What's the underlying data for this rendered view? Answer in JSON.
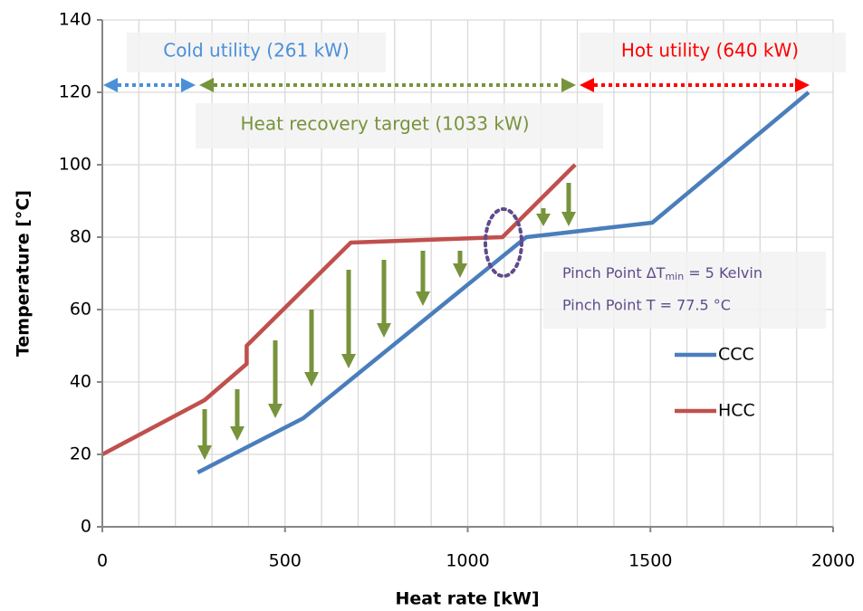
{
  "chart_data": {
    "type": "line",
    "x_label": "Heat rate [kW]",
    "y_label": "Temperature [°C]",
    "xlim": [
      0,
      2000
    ],
    "ylim": [
      0,
      140
    ],
    "xticks": [
      0,
      500,
      1000,
      1500,
      2000
    ],
    "yticks": [
      0,
      20,
      40,
      60,
      80,
      100,
      120,
      140
    ],
    "xgrid": [
      0,
      100,
      200,
      300,
      400,
      500,
      600,
      700,
      800,
      900,
      1000,
      1100,
      1200,
      1300,
      1400,
      1500,
      1600,
      1700,
      1800,
      1900,
      2000
    ],
    "grid": true,
    "legend": "right",
    "series": [
      {
        "name": "CCC",
        "color": "#4a7ebb",
        "x": [
          261,
          550,
          1160,
          1505,
          1933
        ],
        "values": [
          15,
          30,
          80,
          84,
          120
        ]
      },
      {
        "name": "HCC",
        "color": "#c0504d",
        "x": [
          0,
          280,
          395,
          395,
          680,
          1095,
          1294
        ],
        "values": [
          20,
          35,
          45,
          50,
          78.5,
          80,
          100
        ]
      }
    ],
    "annotations": {
      "cold_utility": "Cold utility (261 kW)",
      "heat_recovery": "Heat recovery target (1033 kW)",
      "hot_utility": "Hot utility (640 kW)",
      "pinch_dt": {
        "text": "Pinch Point ΔT",
        "subscript": "min",
        "suffix": "= 5 Kelvin"
      },
      "pinch_t": "Pinch Point T = 77.5 °C"
    }
  }
}
